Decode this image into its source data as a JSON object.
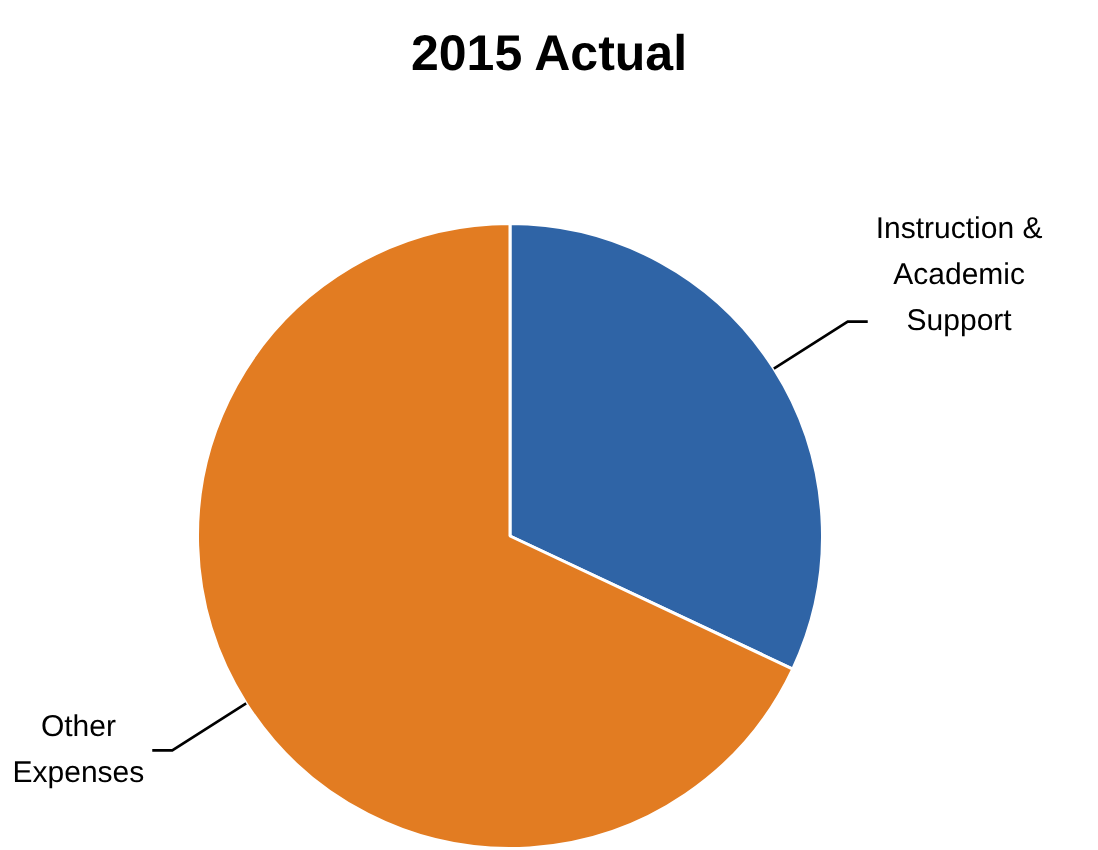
{
  "chart_data": {
    "type": "pie",
    "title": "2015 Actual",
    "categories": [
      "Instruction & Academic Support",
      "Other Expenses"
    ],
    "values": [
      32,
      68
    ],
    "colors": [
      "#2f64a6",
      "#e27c22"
    ],
    "legend": false
  }
}
